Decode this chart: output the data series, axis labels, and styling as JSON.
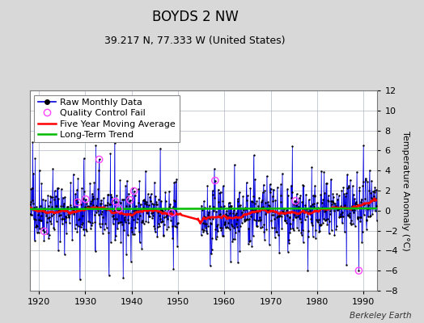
{
  "title": "BOYDS 2 NW",
  "subtitle": "39.217 N, 77.333 W (United States)",
  "ylabel": "Temperature Anomaly (°C)",
  "attribution": "Berkeley Earth",
  "xlim": [
    1918,
    1993
  ],
  "ylim": [
    -8,
    12
  ],
  "yticks": [
    -8,
    -6,
    -4,
    -2,
    0,
    2,
    4,
    6,
    8,
    10,
    12
  ],
  "xticks": [
    1920,
    1930,
    1940,
    1950,
    1960,
    1970,
    1980,
    1990
  ],
  "start_year": 1918,
  "end_year": 1993,
  "bg_color": "#d8d8d8",
  "plot_bg_color": "#ffffff",
  "grid_color": "#b0b8c8",
  "line_color": "#0000dd",
  "stem_color": "#8888ee",
  "dot_color": "#000000",
  "ma_color": "#ff0000",
  "trend_color": "#00bb00",
  "qc_color": "#ff44ff",
  "title_fontsize": 12,
  "subtitle_fontsize": 9,
  "ylabel_fontsize": 8,
  "tick_fontsize": 8,
  "legend_fontsize": 8,
  "seed": 42
}
